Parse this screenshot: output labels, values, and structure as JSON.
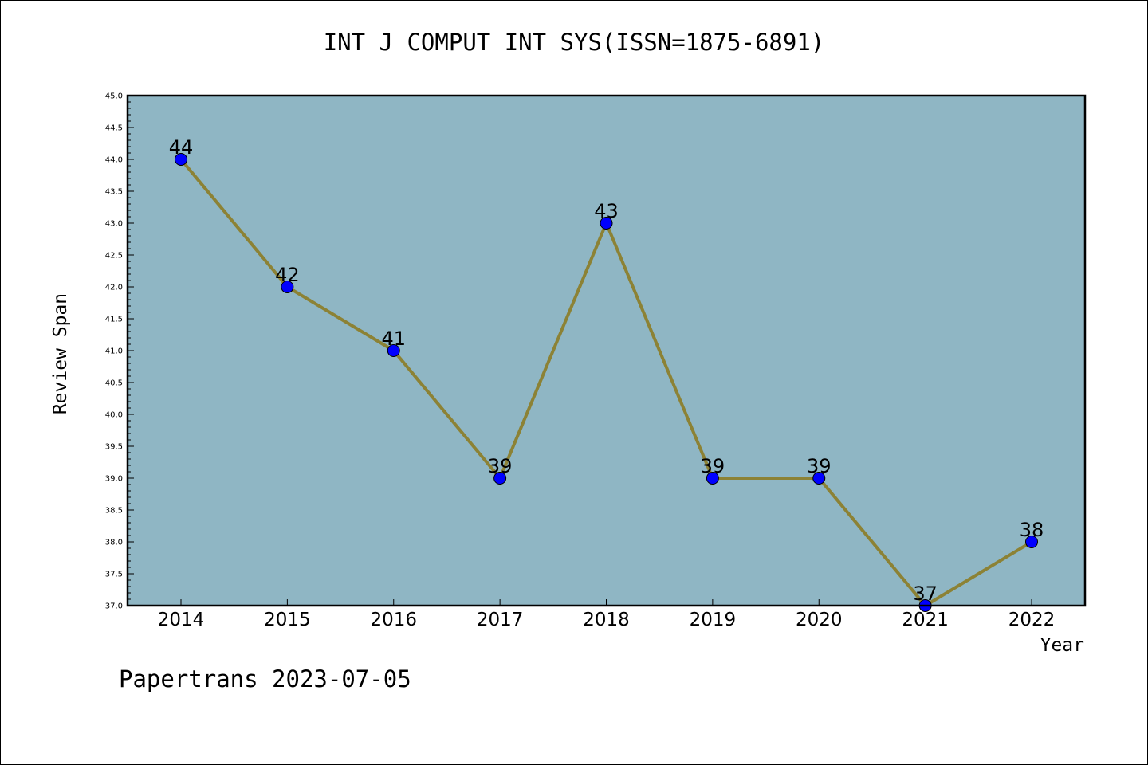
{
  "chart_data": {
    "type": "line",
    "title": "INT J COMPUT INT SYS(ISSN=1875-6891)",
    "xlabel": "Year",
    "ylabel": "Review Span",
    "categories": [
      "2014",
      "2015",
      "2016",
      "2017",
      "2018",
      "2019",
      "2020",
      "2021",
      "2022"
    ],
    "series": [
      {
        "values": [
          44,
          42,
          41,
          39,
          43,
          39,
          39,
          37,
          38
        ]
      }
    ],
    "ylim": [
      37.0,
      45.0
    ],
    "yticks": [
      "37.0",
      "37.5",
      "38.0",
      "38.5",
      "39.0",
      "39.5",
      "40.0",
      "40.5",
      "41.0",
      "41.5",
      "42.0",
      "42.5",
      "43.0",
      "43.5",
      "44.0",
      "44.5",
      "45.0"
    ],
    "data_labels": [
      "44",
      "42",
      "41",
      "39",
      "43",
      "39",
      "39",
      "37",
      "38"
    ],
    "grid": false,
    "colors": {
      "plot_background": "#8fb6c4",
      "line": "#8c8235",
      "marker": "#0000ff"
    }
  },
  "footer": {
    "text": "Papertrans 2023-07-05"
  }
}
